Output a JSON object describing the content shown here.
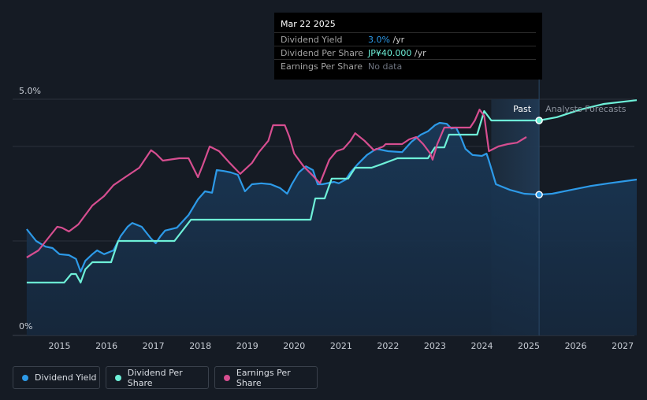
{
  "tooltip": {
    "date": "Mar 22 2025",
    "rows": [
      {
        "label": "Dividend Yield",
        "value": "3.0%",
        "unit": " /yr",
        "color": "#2d9ae8"
      },
      {
        "label": "Dividend Per Share",
        "value": "JP¥40.000",
        "unit": " /yr",
        "color": "#6ef0d8"
      },
      {
        "label": "Earnings Per Share",
        "value": "No data",
        "unit": "",
        "color": "#6e7480"
      }
    ]
  },
  "legend": [
    {
      "label": "Dividend Yield",
      "color": "#2d9ae8"
    },
    {
      "label": "Dividend Per Share",
      "color": "#6ef0d8"
    },
    {
      "label": "Earnings Per Share",
      "color": "#d64e90"
    }
  ],
  "chart_data": {
    "type": "line",
    "y_axis": {
      "labels": [
        "5.0%",
        "0%"
      ],
      "range": [
        0,
        5.0
      ]
    },
    "x_axis": {
      "ticks": [
        "2015",
        "2016",
        "2017",
        "2018",
        "2019",
        "2020",
        "2021",
        "2022",
        "2023",
        "2024",
        "2025",
        "2026",
        "2027"
      ],
      "range": [
        2014.0,
        2027.25
      ]
    },
    "past_label": "Past",
    "forecast_label": "Analysts Forecasts",
    "forecast_start": 2024.2,
    "cursor_x": 2025.22,
    "series": [
      {
        "name": "Dividend Yield",
        "color": "#2d9ae8",
        "filled": true,
        "points": [
          [
            2014.3,
            2.25
          ],
          [
            2014.5,
            2.0
          ],
          [
            2014.7,
            1.88
          ],
          [
            2014.85,
            1.85
          ],
          [
            2015.0,
            1.72
          ],
          [
            2015.2,
            1.7
          ],
          [
            2015.35,
            1.62
          ],
          [
            2015.45,
            1.35
          ],
          [
            2015.55,
            1.58
          ],
          [
            2015.7,
            1.72
          ],
          [
            2015.8,
            1.8
          ],
          [
            2015.95,
            1.72
          ],
          [
            2016.15,
            1.8
          ],
          [
            2016.3,
            2.1
          ],
          [
            2016.45,
            2.3
          ],
          [
            2016.55,
            2.38
          ],
          [
            2016.75,
            2.3
          ],
          [
            2016.95,
            2.05
          ],
          [
            2017.05,
            1.95
          ],
          [
            2017.15,
            2.1
          ],
          [
            2017.25,
            2.22
          ],
          [
            2017.5,
            2.28
          ],
          [
            2017.75,
            2.55
          ],
          [
            2017.95,
            2.88
          ],
          [
            2018.1,
            3.05
          ],
          [
            2018.25,
            3.02
          ],
          [
            2018.35,
            3.5
          ],
          [
            2018.5,
            3.48
          ],
          [
            2018.65,
            3.45
          ],
          [
            2018.8,
            3.4
          ],
          [
            2018.95,
            3.05
          ],
          [
            2019.1,
            3.2
          ],
          [
            2019.3,
            3.22
          ],
          [
            2019.5,
            3.2
          ],
          [
            2019.7,
            3.12
          ],
          [
            2019.85,
            3.0
          ],
          [
            2019.95,
            3.2
          ],
          [
            2020.1,
            3.45
          ],
          [
            2020.25,
            3.58
          ],
          [
            2020.4,
            3.5
          ],
          [
            2020.5,
            3.2
          ],
          [
            2020.6,
            3.2
          ],
          [
            2020.85,
            3.25
          ],
          [
            2020.95,
            3.22
          ],
          [
            2021.1,
            3.3
          ],
          [
            2021.2,
            3.45
          ],
          [
            2021.35,
            3.62
          ],
          [
            2021.55,
            3.82
          ],
          [
            2021.75,
            3.95
          ],
          [
            2022.0,
            3.9
          ],
          [
            2022.3,
            3.88
          ],
          [
            2022.5,
            4.1
          ],
          [
            2022.7,
            4.25
          ],
          [
            2022.85,
            4.32
          ],
          [
            2023.0,
            4.45
          ],
          [
            2023.1,
            4.5
          ],
          [
            2023.25,
            4.48
          ],
          [
            2023.35,
            4.38
          ],
          [
            2023.45,
            4.4
          ],
          [
            2023.55,
            4.2
          ],
          [
            2023.65,
            3.95
          ],
          [
            2023.8,
            3.82
          ],
          [
            2024.0,
            3.8
          ],
          [
            2024.1,
            3.85
          ],
          [
            2024.15,
            3.7
          ],
          [
            2024.3,
            3.2
          ],
          [
            2024.6,
            3.08
          ],
          [
            2024.9,
            3.0
          ],
          [
            2025.22,
            2.98
          ],
          [
            2025.5,
            3.0
          ],
          [
            2025.9,
            3.08
          ],
          [
            2026.3,
            3.16
          ],
          [
            2026.7,
            3.22
          ],
          [
            2027.3,
            3.3
          ]
        ]
      },
      {
        "name": "Dividend Per Share",
        "color": "#6ef0d8",
        "filled": false,
        "points": [
          [
            2014.3,
            1.12
          ],
          [
            2015.1,
            1.12
          ],
          [
            2015.25,
            1.3
          ],
          [
            2015.35,
            1.3
          ],
          [
            2015.45,
            1.12
          ],
          [
            2015.55,
            1.4
          ],
          [
            2015.7,
            1.55
          ],
          [
            2015.95,
            1.55
          ],
          [
            2016.1,
            1.55
          ],
          [
            2016.25,
            2.0
          ],
          [
            2016.95,
            2.0
          ],
          [
            2017.45,
            2.0
          ],
          [
            2017.8,
            2.45
          ],
          [
            2018.4,
            2.45
          ],
          [
            2019.4,
            2.45
          ],
          [
            2020.0,
            2.45
          ],
          [
            2020.35,
            2.45
          ],
          [
            2020.45,
            2.9
          ],
          [
            2020.65,
            2.9
          ],
          [
            2020.8,
            3.32
          ],
          [
            2021.15,
            3.32
          ],
          [
            2021.3,
            3.55
          ],
          [
            2021.65,
            3.55
          ],
          [
            2021.85,
            3.62
          ],
          [
            2022.2,
            3.75
          ],
          [
            2022.5,
            3.75
          ],
          [
            2022.85,
            3.75
          ],
          [
            2023.0,
            3.98
          ],
          [
            2023.2,
            3.98
          ],
          [
            2023.3,
            4.25
          ],
          [
            2023.9,
            4.25
          ],
          [
            2024.05,
            4.75
          ],
          [
            2024.2,
            4.55
          ],
          [
            2024.55,
            4.55
          ],
          [
            2025.22,
            4.55
          ],
          [
            2025.6,
            4.62
          ],
          [
            2026.1,
            4.78
          ],
          [
            2026.6,
            4.9
          ],
          [
            2027.3,
            4.98
          ]
        ]
      },
      {
        "name": "Earnings Per Share",
        "color": "#d64e90",
        "filled": false,
        "points": [
          [
            2014.3,
            1.65
          ],
          [
            2014.55,
            1.8
          ],
          [
            2014.75,
            2.05
          ],
          [
            2014.95,
            2.3
          ],
          [
            2015.05,
            2.28
          ],
          [
            2015.2,
            2.2
          ],
          [
            2015.4,
            2.35
          ],
          [
            2015.7,
            2.75
          ],
          [
            2015.95,
            2.95
          ],
          [
            2016.15,
            3.18
          ],
          [
            2016.4,
            3.35
          ],
          [
            2016.7,
            3.55
          ],
          [
            2016.95,
            3.92
          ],
          [
            2017.05,
            3.85
          ],
          [
            2017.2,
            3.7
          ],
          [
            2017.55,
            3.75
          ],
          [
            2017.75,
            3.75
          ],
          [
            2017.95,
            3.35
          ],
          [
            2018.05,
            3.6
          ],
          [
            2018.2,
            4.0
          ],
          [
            2018.4,
            3.9
          ],
          [
            2018.6,
            3.68
          ],
          [
            2018.85,
            3.42
          ],
          [
            2019.1,
            3.65
          ],
          [
            2019.25,
            3.88
          ],
          [
            2019.45,
            4.12
          ],
          [
            2019.55,
            4.45
          ],
          [
            2019.8,
            4.45
          ],
          [
            2019.9,
            4.2
          ],
          [
            2020.0,
            3.85
          ],
          [
            2020.2,
            3.58
          ],
          [
            2020.4,
            3.38
          ],
          [
            2020.55,
            3.22
          ],
          [
            2020.75,
            3.72
          ],
          [
            2020.9,
            3.9
          ],
          [
            2021.05,
            3.95
          ],
          [
            2021.2,
            4.12
          ],
          [
            2021.3,
            4.28
          ],
          [
            2021.5,
            4.12
          ],
          [
            2021.7,
            3.92
          ],
          [
            2021.9,
            4.0
          ],
          [
            2021.95,
            4.05
          ],
          [
            2022.3,
            4.05
          ],
          [
            2022.45,
            4.15
          ],
          [
            2022.6,
            4.2
          ],
          [
            2022.75,
            4.05
          ],
          [
            2022.9,
            3.85
          ],
          [
            2022.95,
            3.72
          ],
          [
            2023.05,
            4.05
          ],
          [
            2023.2,
            4.4
          ],
          [
            2023.75,
            4.4
          ],
          [
            2023.85,
            4.55
          ],
          [
            2023.95,
            4.78
          ],
          [
            2024.05,
            4.65
          ],
          [
            2024.15,
            3.9
          ],
          [
            2024.35,
            4.0
          ],
          [
            2024.55,
            4.05
          ],
          [
            2024.75,
            4.08
          ],
          [
            2024.95,
            4.2
          ]
        ]
      }
    ]
  }
}
